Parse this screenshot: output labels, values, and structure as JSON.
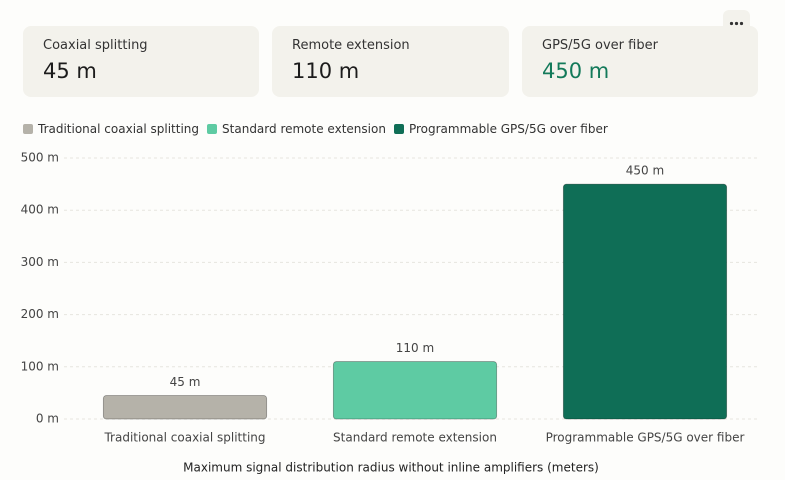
{
  "cards": [
    {
      "label": "Coaxial splitting",
      "value": "45 m"
    },
    {
      "label": "Remote extension",
      "value": "110 m"
    },
    {
      "label": "GPS/5G over fiber",
      "value": "450 m"
    }
  ],
  "chart_data": {
    "type": "bar",
    "categories": [
      "Traditional coaxial splitting",
      "Standard remote extension",
      "Programmable GPS/5G over fiber"
    ],
    "values": [
      45,
      110,
      450
    ],
    "value_labels": [
      "45 m",
      "110 m",
      "450 m"
    ],
    "colors": [
      "#b5b2a9",
      "#5ecba3",
      "#0f6e56"
    ],
    "x_label": "Maximum signal distribution radius without inline amplifiers (meters)",
    "ylim": [
      0,
      500
    ],
    "yticks": [
      {
        "value": 0,
        "label": "0 m"
      },
      {
        "value": 100,
        "label": "100 m"
      },
      {
        "value": 200,
        "label": "200 m"
      },
      {
        "value": 300,
        "label": "300 m"
      },
      {
        "value": 400,
        "label": "400 m"
      },
      {
        "value": 500,
        "label": "500 m"
      }
    ],
    "grid": true
  }
}
